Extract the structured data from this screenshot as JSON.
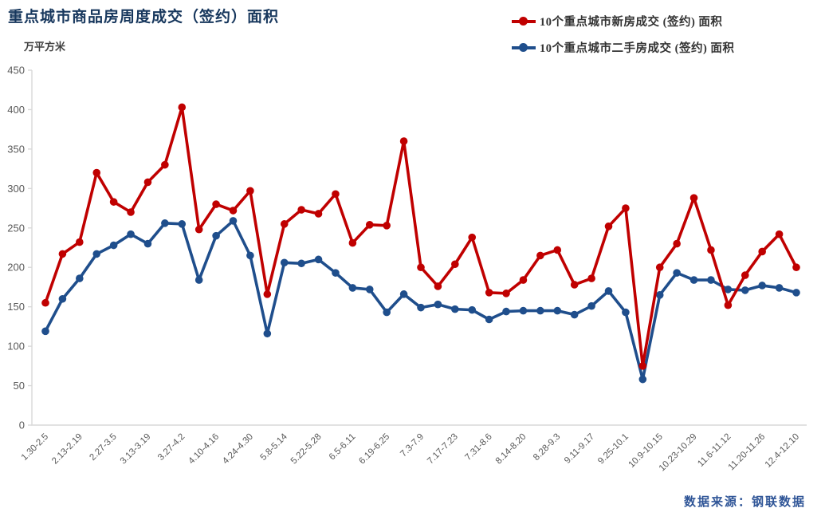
{
  "title": "重点城市商品房周度成交（签约）面积",
  "unit_label": "万平方米",
  "source": "数据来源：钢联数据",
  "legend": [
    {
      "label": "10个重点城市新房成交 (签约) 面积",
      "color": "#C00000"
    },
    {
      "label": "10个重点城市二手房成交 (签约) 面积",
      "color": "#1F4E8C"
    }
  ],
  "colors": {
    "new_homes": "#C00000",
    "secondhand": "#1F4E8C",
    "axis_line": "#D9D9D9",
    "axis_text": "#595959",
    "title_text": "#17375D",
    "source_text": "#2F5597"
  },
  "chart_data": {
    "type": "line",
    "title": "重点城市商品房周度成交（签约）面积",
    "ylabel": "万平方米",
    "ylim": [
      0,
      450
    ],
    "y_ticks": [
      0,
      50,
      100,
      150,
      200,
      250,
      300,
      350,
      400,
      450
    ],
    "grid": false,
    "legend_position": "top-right",
    "n_points": 45,
    "label_every": 2,
    "x_labels": [
      "1.30-2.5",
      "2.13-2.19",
      "2.27-3.5",
      "3.13-3.19",
      "3.27-4.2",
      "4.10-4.16",
      "4.24-4.30",
      "5.8-5.14",
      "5.22-5.28",
      "6.5-6.11",
      "6.19-6.25",
      "7.3-7.9",
      "7.17-7.23",
      "7.31-8.6",
      "8.14-8.20",
      "8.28-9.3",
      "9.11-9.17",
      "9.25-10.1",
      "10.9-10.15",
      "10.23-10.29",
      "11.6-11.12",
      "11.20-11.26",
      "12.4-12.10"
    ],
    "series": [
      {
        "name": "10个重点城市新房成交 (签约) 面积",
        "color": "#C00000",
        "values": [
          155,
          217,
          232,
          320,
          283,
          270,
          308,
          330,
          403,
          248,
          280,
          272,
          297,
          166,
          255,
          273,
          268,
          293,
          231,
          254,
          253,
          360,
          200,
          176,
          204,
          238,
          168,
          167,
          184,
          215,
          222,
          178,
          186,
          252,
          275,
          75,
          200,
          230,
          288,
          222,
          152,
          190,
          220,
          242,
          200
        ]
      },
      {
        "name": "10个重点城市二手房成交 (签约) 面积",
        "color": "#1F4E8C",
        "values": [
          119,
          160,
          186,
          217,
          228,
          242,
          230,
          256,
          255,
          184,
          240,
          259,
          215,
          116,
          206,
          205,
          210,
          193,
          174,
          172,
          143,
          166,
          149,
          153,
          147,
          146,
          134,
          144,
          145,
          145,
          145,
          140,
          151,
          170,
          143,
          58,
          165,
          193,
          184,
          184,
          172,
          171,
          177,
          174,
          168
        ]
      }
    ]
  }
}
